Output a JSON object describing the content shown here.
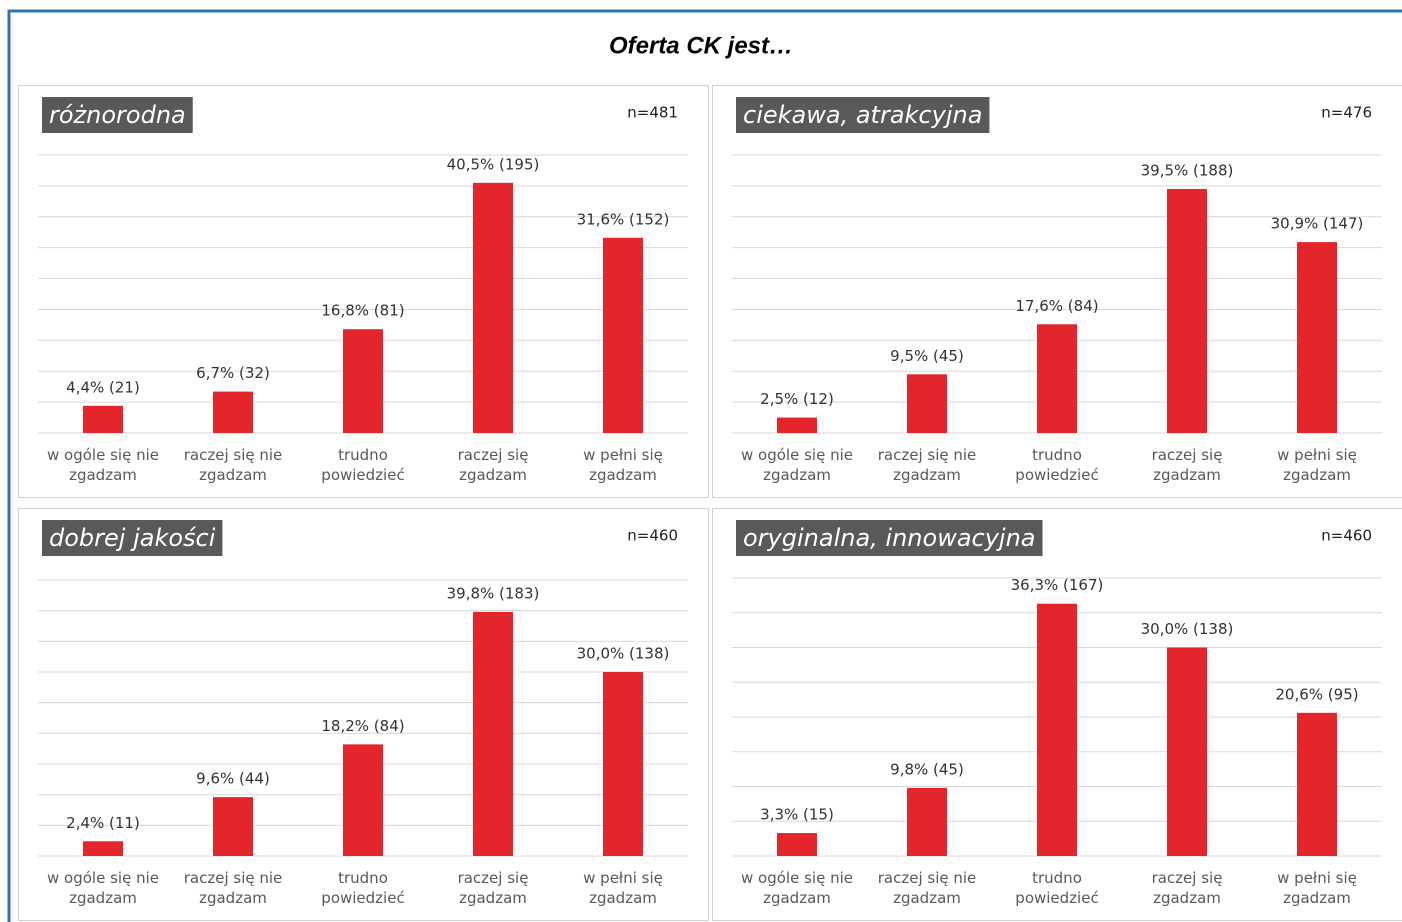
{
  "title": "Oferta CK jest…",
  "chart_data": [
    {
      "type": "bar",
      "title": "różnorodna",
      "note": "n=481",
      "color": "#e3262b",
      "grid": true,
      "categories": [
        "w ogóle się nie zgadzam",
        "raczej się nie zgadzam",
        "trudno powiedzieć",
        "raczej się zgadzam",
        "w pełni się zgadzam"
      ],
      "values": [
        4.4,
        6.7,
        16.8,
        40.5,
        31.6
      ],
      "value_labels": [
        "4,4% (21)",
        "6,7% (32)",
        "16,8% (81)",
        "40,5% (195)",
        "31,6% (152)"
      ],
      "ylim": [
        0,
        45
      ],
      "yticks": [
        0,
        5,
        10,
        15,
        20,
        25,
        30,
        35,
        40,
        45
      ]
    },
    {
      "type": "bar",
      "title": "ciekawa, atrakcyjna",
      "note": "n=476",
      "color": "#e3262b",
      "grid": true,
      "categories": [
        "w ogóle się nie zgadzam",
        "raczej się nie zgadzam",
        "trudno powiedzieć",
        "raczej się zgadzam",
        "w pełni się zgadzam"
      ],
      "values": [
        2.5,
        9.5,
        17.6,
        39.5,
        30.9
      ],
      "value_labels": [
        "2,5% (12)",
        "9,5% (45)",
        "17,6% (84)",
        "39,5% (188)",
        "30,9% (147)"
      ],
      "ylim": [
        0,
        45
      ],
      "yticks": [
        0,
        5,
        10,
        15,
        20,
        25,
        30,
        35,
        40,
        45
      ]
    },
    {
      "type": "bar",
      "title": "dobrej jakości",
      "note": "n=460",
      "color": "#e3262b",
      "grid": true,
      "categories": [
        "w ogóle się nie zgadzam",
        "raczej się nie zgadzam",
        "trudno powiedzieć",
        "raczej się zgadzam",
        "w pełni się zgadzam"
      ],
      "values": [
        2.4,
        9.6,
        18.2,
        39.8,
        30.0
      ],
      "value_labels": [
        "2,4% (11)",
        "9,6% (44)",
        "18,2% (84)",
        "39,8% (183)",
        "30,0% (138)"
      ],
      "ylim": [
        0,
        45
      ],
      "yticks": [
        0,
        5,
        10,
        15,
        20,
        25,
        30,
        35,
        40,
        45
      ]
    },
    {
      "type": "bar",
      "title": "oryginalna, innowacyjna",
      "note": "n=460",
      "color": "#e3262b",
      "grid": true,
      "categories": [
        "w ogóle się nie zgadzam",
        "raczej się nie zgadzam",
        "trudno powiedzieć",
        "raczej się zgadzam",
        "w pełni się zgadzam"
      ],
      "values": [
        3.3,
        9.8,
        36.3,
        30.0,
        20.6
      ],
      "value_labels": [
        "3,3% (15)",
        "9,8% (45)",
        "36,3% (167)",
        "30,0% (138)",
        "20,6% (95)"
      ],
      "ylim": [
        0,
        40
      ],
      "yticks": [
        0,
        5,
        10,
        15,
        20,
        25,
        30,
        35,
        40
      ]
    }
  ]
}
